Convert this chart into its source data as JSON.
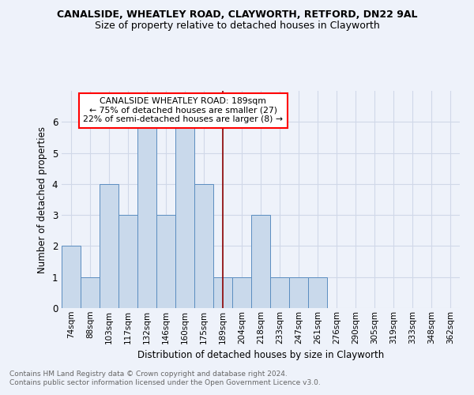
{
  "title": "CANALSIDE, WHEATLEY ROAD, CLAYWORTH, RETFORD, DN22 9AL",
  "subtitle": "Size of property relative to detached houses in Clayworth",
  "xlabel": "Distribution of detached houses by size in Clayworth",
  "ylabel": "Number of detached properties",
  "bin_labels": [
    "74sqm",
    "88sqm",
    "103sqm",
    "117sqm",
    "132sqm",
    "146sqm",
    "160sqm",
    "175sqm",
    "189sqm",
    "204sqm",
    "218sqm",
    "233sqm",
    "247sqm",
    "261sqm",
    "276sqm",
    "290sqm",
    "305sqm",
    "319sqm",
    "333sqm",
    "348sqm",
    "362sqm"
  ],
  "bar_heights": [
    2,
    1,
    4,
    3,
    6,
    3,
    6,
    4,
    1,
    1,
    3,
    1,
    1,
    1,
    0,
    0,
    0,
    0,
    0,
    0,
    0
  ],
  "property_line_index": 8,
  "ylim": [
    0,
    7
  ],
  "yticks": [
    0,
    1,
    2,
    3,
    4,
    5,
    6
  ],
  "bar_color": "#c9d9eb",
  "bar_edge_color": "#5b8dc0",
  "vline_color": "#8b0000",
  "annotation_text": "CANALSIDE WHEATLEY ROAD: 189sqm\n← 75% of detached houses are smaller (27)\n22% of semi-detached houses are larger (8) →",
  "annotation_box_color": "white",
  "annotation_box_edge": "red",
  "footer1": "Contains HM Land Registry data © Crown copyright and database right 2024.",
  "footer2": "Contains public sector information licensed under the Open Government Licence v3.0.",
  "bg_color": "#eef2fa",
  "grid_color": "#d0d8e8",
  "title_fontsize": 9,
  "subtitle_fontsize": 9
}
